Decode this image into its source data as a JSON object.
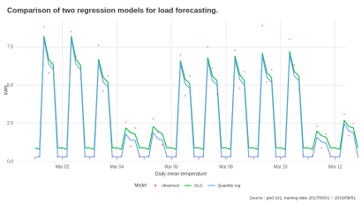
{
  "chart_data": {
    "type": "line",
    "title": "Comparison of two regression models for load forecasting.",
    "x_label": "Daily mean temperature",
    "y_label": "kWh",
    "legend_title": "Model",
    "caption": "Source : grid 101, training date 2017/08/01 ~ 2018/08/01",
    "legend_position": "bottom",
    "grid": true,
    "xlim": [
      0.3,
      12.4
    ],
    "ylim": [
      0,
      9.3
    ],
    "xticks": [
      {
        "value": 2,
        "label": "Mar 02"
      },
      {
        "value": 4,
        "label": "Mar 04"
      },
      {
        "value": 6,
        "label": "Mar 06"
      },
      {
        "value": 8,
        "label": "Mar 08"
      },
      {
        "value": 10,
        "label": "Mar 10"
      },
      {
        "value": 12,
        "label": "Mar 12"
      }
    ],
    "yticks": [
      {
        "value": 0,
        "label": "0.0"
      },
      2.5,
      {
        "value": 5,
        "label": "5.0"
      },
      7.5
    ],
    "x": [
      1,
      1.17,
      1.33,
      1.5,
      1.67,
      1.83,
      2,
      2.17,
      2.33,
      2.5,
      2.67,
      2.83,
      3,
      3.17,
      3.33,
      3.5,
      3.67,
      3.83,
      4,
      4.17,
      4.33,
      4.5,
      4.67,
      4.83,
      5,
      5.17,
      5.33,
      5.5,
      5.67,
      5.83,
      6,
      6.17,
      6.33,
      6.5,
      6.67,
      6.83,
      7,
      7.17,
      7.33,
      7.5,
      7.67,
      7.83,
      8,
      8.17,
      8.33,
      8.5,
      8.67,
      8.83,
      9,
      9.17,
      9.33,
      9.5,
      9.67,
      9.83,
      10,
      10.17,
      10.33,
      10.5,
      10.67,
      10.83,
      11,
      11.17,
      11.33,
      11.5,
      11.67,
      11.83,
      12,
      12.17,
      12.33,
      12.5,
      12.67,
      12.83
    ],
    "series": [
      {
        "name": "observed",
        "type": "scatter",
        "color": "#f8766d",
        "values": [
          0.2,
          0.4,
          8.8,
          5.8,
          6.5,
          0.3,
          0.2,
          0.4,
          8.5,
          6.9,
          5.4,
          0.3,
          0.2,
          0.4,
          7.6,
          4.6,
          5.6,
          0.3,
          0.2,
          0.4,
          2.6,
          1.0,
          2.2,
          0.3,
          0.2,
          0.4,
          2.8,
          1.9,
          1.1,
          0.3,
          0.2,
          0.4,
          7.0,
          4.3,
          5.6,
          0.3,
          0.2,
          0.4,
          7.5,
          6.1,
          4.4,
          0.3,
          0.2,
          0.4,
          7.3,
          4.8,
          5.9,
          0.3,
          0.2,
          0.4,
          8.9,
          5.2,
          6.0,
          0.3,
          0.2,
          0.4,
          8.0,
          6.3,
          4.7,
          0.3,
          0.2,
          0.4,
          2.3,
          0.9,
          1.8,
          0.3,
          0.2,
          0.4,
          3.1,
          1.7,
          2.5,
          0.3
        ]
      },
      {
        "name": "OLS",
        "type": "line",
        "color": "#00ba38",
        "values": [
          0.9,
          0.8,
          8.2,
          6.7,
          6.3,
          0.9,
          0.9,
          0.8,
          8.2,
          6.7,
          6.3,
          0.9,
          0.9,
          0.8,
          6.7,
          5.5,
          5.2,
          0.9,
          0.9,
          0.8,
          2.2,
          1.9,
          1.8,
          0.9,
          0.9,
          0.8,
          2.3,
          2.0,
          1.8,
          0.9,
          0.9,
          0.8,
          6.6,
          5.4,
          5.1,
          0.9,
          0.9,
          0.8,
          6.8,
          5.6,
          5.3,
          0.9,
          0.9,
          0.8,
          6.9,
          5.7,
          5.3,
          0.9,
          0.9,
          0.8,
          7.1,
          5.8,
          5.5,
          0.9,
          0.9,
          0.8,
          7.2,
          5.9,
          5.6,
          0.9,
          0.9,
          0.8,
          2.0,
          1.7,
          1.6,
          0.9,
          0.9,
          0.8,
          2.7,
          2.3,
          2.2,
          0.9
        ]
      },
      {
        "name": "Quantile reg",
        "type": "line",
        "color": "#619cff",
        "values": [
          0.3,
          0.3,
          8.0,
          6.4,
          6.0,
          0.35,
          0.3,
          0.3,
          8.0,
          6.4,
          6.0,
          0.35,
          0.3,
          0.3,
          6.5,
          5.2,
          4.9,
          0.35,
          0.3,
          0.3,
          1.8,
          1.4,
          1.4,
          0.35,
          0.3,
          0.3,
          1.9,
          1.5,
          1.4,
          0.35,
          0.3,
          0.3,
          6.4,
          5.1,
          4.8,
          0.35,
          0.3,
          0.3,
          6.6,
          5.3,
          5.0,
          0.35,
          0.3,
          0.3,
          6.7,
          5.4,
          5.0,
          0.35,
          0.3,
          0.3,
          6.9,
          5.5,
          5.2,
          0.35,
          0.3,
          0.3,
          7.0,
          5.6,
          5.3,
          0.35,
          0.3,
          0.3,
          1.6,
          1.3,
          1.2,
          0.35,
          0.3,
          0.3,
          2.5,
          2.0,
          1.9,
          0.35
        ]
      }
    ]
  }
}
